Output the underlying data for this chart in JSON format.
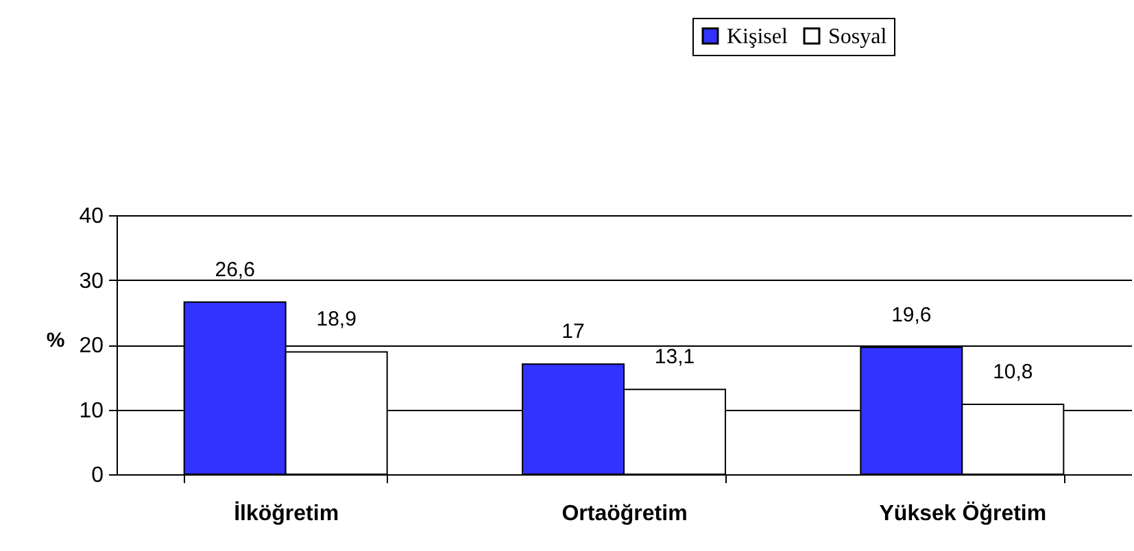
{
  "chart_data": {
    "type": "bar",
    "categories": [
      "İlköğretim",
      "Ortaöğretim",
      "Yüksek Öğretim"
    ],
    "ylabel": "%",
    "series": [
      {
        "name": "Kişisel",
        "color": "#3333ff",
        "values": [
          26.6,
          17,
          19.6
        ],
        "value_labels": [
          "26,6",
          "17",
          "19,6"
        ]
      },
      {
        "name": "Sosyal",
        "color": "#ffffff",
        "values": [
          18.9,
          13.1,
          10.8
        ],
        "value_labels": [
          "18,9",
          "13,1",
          "10,8"
        ]
      }
    ],
    "ylim": [
      0,
      40
    ],
    "yticks": [
      0,
      10,
      20,
      30,
      40
    ],
    "grid": "y",
    "legend": "top"
  }
}
